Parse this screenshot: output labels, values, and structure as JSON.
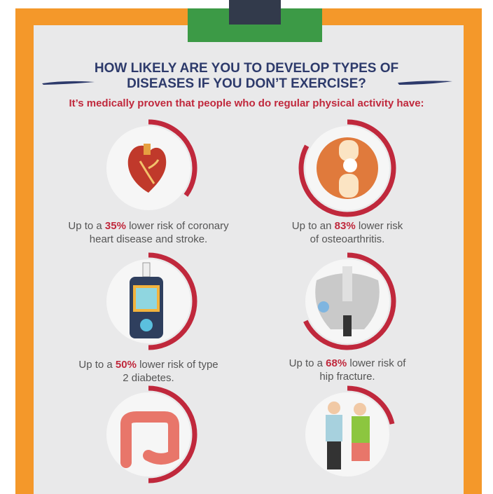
{
  "title_lines": [
    "HOW LIKELY ARE YOU TO DEVELOP TYPES OF",
    "DISEASES IF YOU DON’T EXERCISE?"
  ],
  "subtitle": "It’s medically proven that people who do regular physical activity have:",
  "items": [
    {
      "line1_start": "Up to a ",
      "percent": {
        "value": 35,
        "label": "35%"
      },
      "line1_end": " lower risk of coronary",
      "line2": "heart disease and stroke."
    },
    {
      "line1_start": "Up to an ",
      "percent": {
        "value": 83,
        "label": "83%"
      },
      "line1_end": " lower risk",
      "line2": "of osteoarthritis."
    },
    {
      "line1_start": "Up to a ",
      "percent": {
        "value": 50,
        "label": "50%"
      },
      "line1_end": " lower risk of type",
      "line2": "2 diabetes."
    },
    {
      "line1_start": "Up to a ",
      "percent": {
        "value": 68,
        "label": "68%"
      },
      "line1_end": " lower risk of",
      "line2": "hip fracture."
    }
  ]
}
